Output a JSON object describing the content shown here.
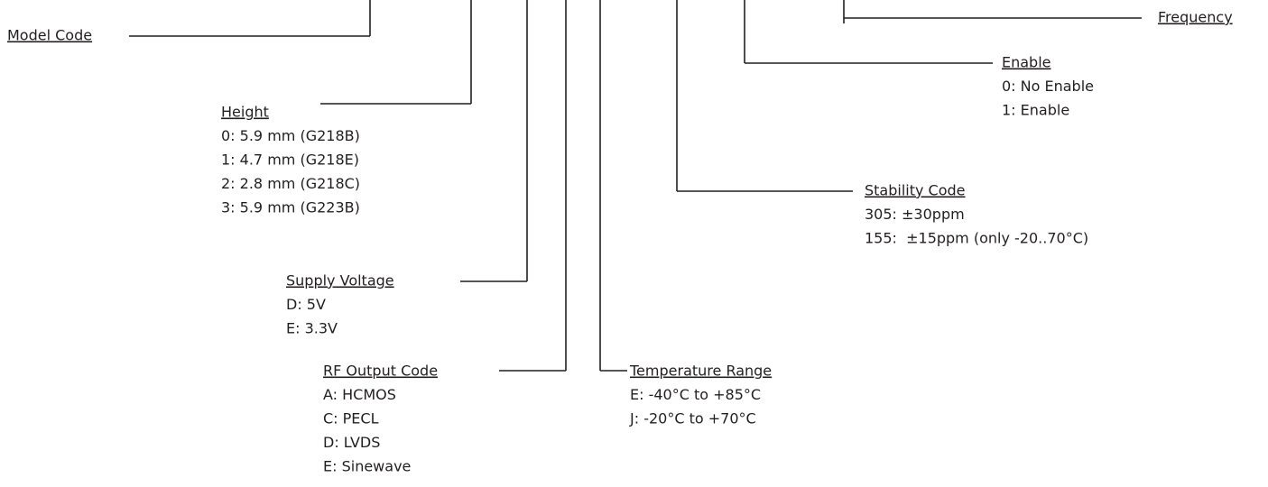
{
  "items": [
    {
      "title": "Model Code",
      "options": []
    },
    {
      "title": "Height",
      "options": [
        "0: 5.9 mm (G218B)",
        "1: 4.7 mm (G218E)",
        "2: 2.8 mm (G218C)",
        "3: 5.9 mm (G223B)"
      ]
    },
    {
      "title": "Supply Voltage",
      "options": [
        "D: 5V",
        "E: 3.3V"
      ]
    },
    {
      "title": "RF Output Code",
      "options": [
        "A: HCMOS",
        "C: PECL",
        "D: LVDS",
        "E: Sinewave"
      ]
    },
    {
      "title": "Temperature Range",
      "options": [
        "E: -40°C to +85°C",
        "J: -20°C to +70°C"
      ]
    },
    {
      "title": "Stability Code",
      "options": [
        "305: ±30ppm",
        "155:  ±15ppm (only -20..70°C)"
      ]
    },
    {
      "title": "Enable",
      "options": [
        "0: No Enable",
        "1: Enable"
      ]
    },
    {
      "title": "Frequency",
      "options": []
    }
  ]
}
